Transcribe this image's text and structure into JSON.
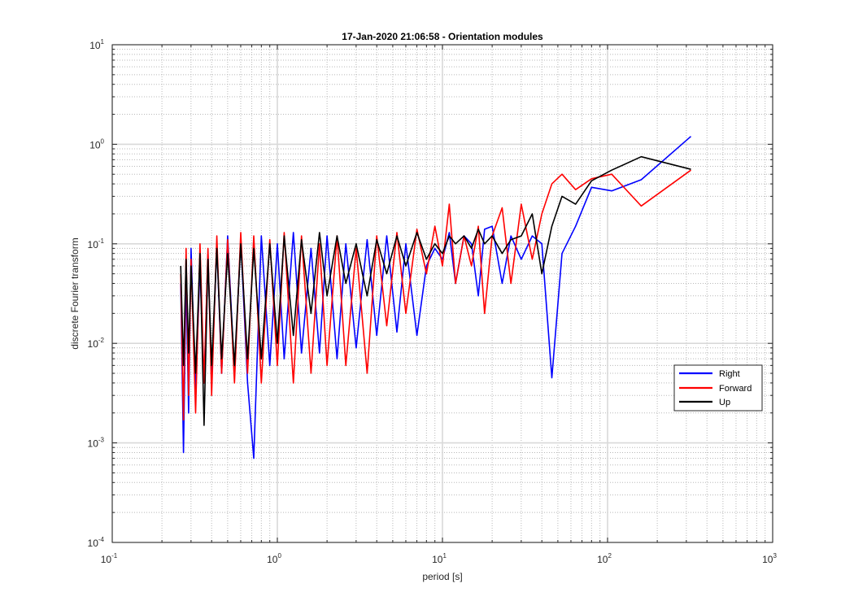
{
  "chart_data": {
    "type": "line",
    "title": "17-Jan-2020 21:06:58 - Orientation modules",
    "xlabel": "period [s]",
    "ylabel": "discrete Fourier transform",
    "xscale": "log",
    "yscale": "log",
    "xlim": [
      0.1,
      1000
    ],
    "ylim": [
      0.0001,
      10
    ],
    "x_tick_labels": [
      {
        "base": "10",
        "exp": "-1"
      },
      {
        "base": "10",
        "exp": "0"
      },
      {
        "base": "10",
        "exp": "1"
      },
      {
        "base": "10",
        "exp": "2"
      },
      {
        "base": "10",
        "exp": "3"
      }
    ],
    "y_tick_labels": [
      {
        "base": "10",
        "exp": "-4"
      },
      {
        "base": "10",
        "exp": "-3"
      },
      {
        "base": "10",
        "exp": "-2"
      },
      {
        "base": "10",
        "exp": "-1"
      },
      {
        "base": "10",
        "exp": "0"
      },
      {
        "base": "10",
        "exp": "1"
      }
    ],
    "grid": true,
    "legend_position": "lower-right",
    "series": [
      {
        "name": "Right",
        "color": "#0000ff",
        "x": [
          0.26,
          0.27,
          0.28,
          0.29,
          0.3,
          0.32,
          0.34,
          0.36,
          0.38,
          0.4,
          0.43,
          0.46,
          0.5,
          0.55,
          0.6,
          0.66,
          0.72,
          0.8,
          0.9,
          1.0,
          1.1,
          1.25,
          1.4,
          1.6,
          1.8,
          2.0,
          2.3,
          2.6,
          3.0,
          3.5,
          4.0,
          4.6,
          5.3,
          6.0,
          7.0,
          8.0,
          9.0,
          10.0,
          11.0,
          12.0,
          13.5,
          15.0,
          16.5,
          18.0,
          20.0,
          23.0,
          26.0,
          30.0,
          35.0,
          40.0,
          46.0,
          53.0,
          64.0,
          80.0,
          106.0,
          160.0,
          320.0
        ],
        "y": [
          0.04,
          0.0008,
          0.05,
          0.002,
          0.09,
          0.003,
          0.06,
          0.004,
          0.08,
          0.004,
          0.1,
          0.005,
          0.12,
          0.005,
          0.11,
          0.004,
          0.0007,
          0.12,
          0.006,
          0.1,
          0.007,
          0.13,
          0.008,
          0.09,
          0.008,
          0.12,
          0.007,
          0.1,
          0.009,
          0.11,
          0.012,
          0.12,
          0.013,
          0.1,
          0.012,
          0.06,
          0.09,
          0.07,
          0.13,
          0.04,
          0.12,
          0.1,
          0.03,
          0.14,
          0.15,
          0.04,
          0.12,
          0.07,
          0.12,
          0.1,
          0.0045,
          0.08,
          0.15,
          0.37,
          0.34,
          0.44,
          1.2
        ]
      },
      {
        "name": "Forward",
        "color": "#ff0000",
        "x": [
          0.26,
          0.27,
          0.28,
          0.29,
          0.3,
          0.32,
          0.34,
          0.36,
          0.38,
          0.4,
          0.43,
          0.46,
          0.5,
          0.55,
          0.6,
          0.66,
          0.72,
          0.8,
          0.9,
          1.0,
          1.1,
          1.25,
          1.4,
          1.6,
          1.8,
          2.0,
          2.3,
          2.6,
          3.0,
          3.5,
          4.0,
          4.6,
          5.3,
          6.0,
          7.0,
          8.0,
          9.0,
          10.0,
          11.0,
          12.0,
          13.5,
          15.0,
          16.5,
          18.0,
          20.0,
          23.0,
          26.0,
          30.0,
          35.0,
          40.0,
          46.0,
          53.0,
          64.0,
          80.0,
          106.0,
          160.0,
          320.0
        ],
        "y": [
          0.05,
          0.0017,
          0.09,
          0.003,
          0.07,
          0.002,
          0.1,
          0.004,
          0.09,
          0.003,
          0.12,
          0.005,
          0.11,
          0.004,
          0.13,
          0.005,
          0.12,
          0.004,
          0.11,
          0.006,
          0.13,
          0.004,
          0.12,
          0.005,
          0.1,
          0.006,
          0.12,
          0.006,
          0.09,
          0.005,
          0.12,
          0.015,
          0.13,
          0.02,
          0.14,
          0.05,
          0.15,
          0.06,
          0.25,
          0.04,
          0.12,
          0.06,
          0.15,
          0.02,
          0.12,
          0.23,
          0.04,
          0.25,
          0.07,
          0.2,
          0.4,
          0.5,
          0.35,
          0.45,
          0.5,
          0.24,
          0.55
        ]
      },
      {
        "name": "Up",
        "color": "#000000",
        "x": [
          0.26,
          0.27,
          0.28,
          0.29,
          0.3,
          0.32,
          0.34,
          0.36,
          0.38,
          0.4,
          0.43,
          0.46,
          0.5,
          0.55,
          0.6,
          0.66,
          0.72,
          0.8,
          0.9,
          1.0,
          1.1,
          1.25,
          1.4,
          1.6,
          1.8,
          2.0,
          2.3,
          2.6,
          3.0,
          3.5,
          4.0,
          4.6,
          5.3,
          6.0,
          7.0,
          8.0,
          9.0,
          10.0,
          11.0,
          12.0,
          13.5,
          15.0,
          16.5,
          18.0,
          20.0,
          23.0,
          26.0,
          30.0,
          35.0,
          40.0,
          46.0,
          53.0,
          64.0,
          80.0,
          106.0,
          160.0,
          320.0
        ],
        "y": [
          0.06,
          0.006,
          0.07,
          0.008,
          0.06,
          0.005,
          0.08,
          0.0015,
          0.07,
          0.006,
          0.09,
          0.007,
          0.08,
          0.006,
          0.1,
          0.007,
          0.09,
          0.007,
          0.1,
          0.01,
          0.12,
          0.012,
          0.11,
          0.02,
          0.13,
          0.03,
          0.12,
          0.04,
          0.1,
          0.03,
          0.11,
          0.05,
          0.12,
          0.06,
          0.13,
          0.07,
          0.1,
          0.08,
          0.12,
          0.1,
          0.12,
          0.09,
          0.14,
          0.1,
          0.12,
          0.08,
          0.11,
          0.12,
          0.2,
          0.05,
          0.15,
          0.3,
          0.25,
          0.43,
          0.55,
          0.75,
          0.56
        ]
      }
    ]
  }
}
